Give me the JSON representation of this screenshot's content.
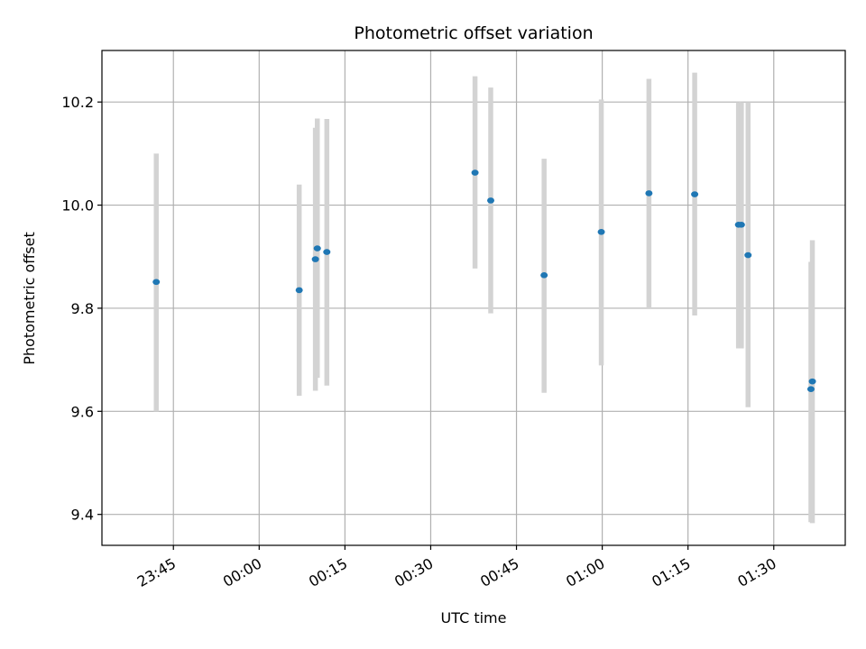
{
  "chart_data": {
    "type": "scatter",
    "title": "Photometric offset variation",
    "xlabel": "UTC time",
    "ylabel": "Photometric offset",
    "grid": true,
    "legend": "none",
    "x_tick_labels": [
      "23:45",
      "00:00",
      "00:15",
      "00:30",
      "00:45",
      "01:00",
      "01:15",
      "01:30"
    ],
    "x_tick_minutes": [
      -15,
      0,
      15,
      30,
      45,
      60,
      75,
      90
    ],
    "xlim_minutes": [
      -27.5,
      102.5
    ],
    "y_ticks": [
      9.4,
      9.6,
      9.8,
      10.0,
      10.2
    ],
    "y_tick_labels": [
      "9.4",
      "9.6",
      "9.8",
      "10.0",
      "10.2"
    ],
    "ylim": [
      9.34,
      10.3
    ],
    "colors": {
      "point": "#1f77b4",
      "errorbar": "#d3d3d3",
      "grid": "#b0b0b0"
    },
    "points": [
      {
        "t": "23:42",
        "y": 9.851,
        "low": 9.6,
        "high": 10.1
      },
      {
        "t": "00:07",
        "y": 9.835,
        "low": 9.63,
        "high": 10.04
      },
      {
        "t": "00:09:50",
        "y": 9.895,
        "low": 9.64,
        "high": 10.15
      },
      {
        "t": "00:10:10",
        "y": 9.916,
        "low": 9.665,
        "high": 10.168
      },
      {
        "t": "00:11:50",
        "y": 9.909,
        "low": 9.65,
        "high": 10.167
      },
      {
        "t": "00:37:45",
        "y": 10.063,
        "low": 9.877,
        "high": 10.25
      },
      {
        "t": "00:40:30",
        "y": 10.009,
        "low": 9.79,
        "high": 10.228
      },
      {
        "t": "00:49:50",
        "y": 9.864,
        "low": 9.636,
        "high": 10.09
      },
      {
        "t": "00:59:50",
        "y": 9.948,
        "low": 9.689,
        "high": 10.205
      },
      {
        "t": "01:08:10",
        "y": 10.023,
        "low": 9.8,
        "high": 10.245
      },
      {
        "t": "01:16:10",
        "y": 10.021,
        "low": 9.786,
        "high": 10.257
      },
      {
        "t": "01:23:50",
        "y": 9.962,
        "low": 9.722,
        "high": 10.2
      },
      {
        "t": "01:24:20",
        "y": 9.962,
        "low": 9.722,
        "high": 10.2
      },
      {
        "t": "01:25:30",
        "y": 9.903,
        "low": 9.608,
        "high": 10.2
      },
      {
        "t": "01:36:30",
        "y": 9.643,
        "low": 9.385,
        "high": 9.89
      },
      {
        "t": "01:36:45",
        "y": 9.658,
        "low": 9.383,
        "high": 9.932
      }
    ]
  }
}
